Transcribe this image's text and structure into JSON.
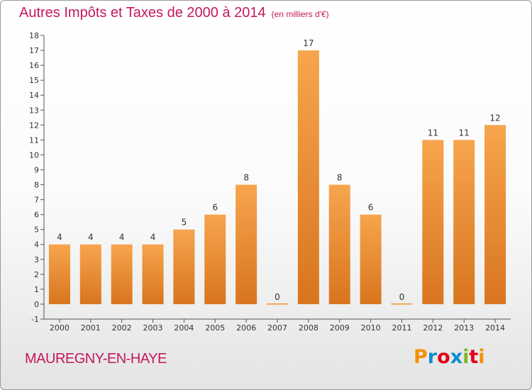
{
  "header": {
    "title": "Autres Impôts et Taxes de 2000 à 2014",
    "unit": "(en milliers d'€)"
  },
  "footer": {
    "commune": "MAUREGNY-EN-HAYE",
    "logo_text": "Proxiti",
    "logo_colors": [
      "#f39200",
      "#0b8fcf",
      "#e2001a",
      "#0b8fcf",
      "#7cb928",
      "#e2001a",
      "#f39200"
    ]
  },
  "chart_data": {
    "type": "bar",
    "title": "Autres Impôts et Taxes de 2000 à 2014",
    "xlabel": "",
    "ylabel": "",
    "categories": [
      "2000",
      "2001",
      "2002",
      "2003",
      "2004",
      "2005",
      "2006",
      "2007",
      "2008",
      "2009",
      "2010",
      "2011",
      "2012",
      "2013",
      "2014"
    ],
    "values": [
      4,
      4,
      4,
      4,
      5,
      6,
      8,
      0,
      17,
      8,
      6,
      0,
      11,
      11,
      12
    ],
    "data_labels": [
      "4",
      "4",
      "4",
      "4",
      "5",
      "6",
      "8",
      "0",
      "17",
      "8",
      "6",
      "0",
      "11",
      "11",
      "12"
    ],
    "yticks": [
      "-1",
      "0",
      "1",
      "2",
      "3",
      "4",
      "5",
      "6",
      "7",
      "8",
      "9",
      "10",
      "11",
      "12",
      "13",
      "14",
      "15",
      "16",
      "17",
      "18"
    ],
    "ylim": [
      -1,
      18
    ],
    "grid": false,
    "bar_color": "#f0922f"
  }
}
